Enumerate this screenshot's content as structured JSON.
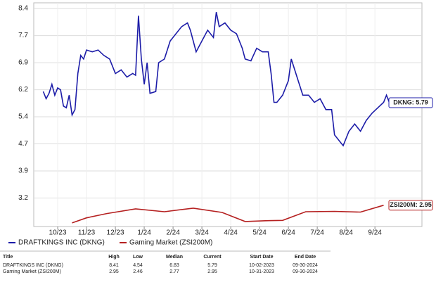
{
  "chart_data": {
    "type": "line",
    "xlim": [
      -0.83,
      12.63
    ],
    "xticks": [
      {
        "value": 0,
        "label": "10/23"
      },
      {
        "value": 1,
        "label": "11/23"
      },
      {
        "value": 2,
        "label": "12/23"
      },
      {
        "value": 3,
        "label": "1/24"
      },
      {
        "value": 4,
        "label": "2/24"
      },
      {
        "value": 5,
        "label": "3/24"
      },
      {
        "value": 6,
        "label": "4/24"
      },
      {
        "value": 7,
        "label": "5/24"
      },
      {
        "value": 8,
        "label": "6/24"
      },
      {
        "value": 9,
        "label": "7/24"
      },
      {
        "value": 10,
        "label": "8/24"
      },
      {
        "value": 11,
        "label": "9/24"
      }
    ],
    "ylim": [
      2.4,
      8.48
    ],
    "yticks": [
      8.4,
      {
        "value": 7.65,
        "label": "7.7"
      },
      6.9,
      {
        "value": 6.15,
        "label": "6.2"
      },
      5.4,
      {
        "value": 4.65,
        "label": "4.7"
      },
      3.9,
      {
        "value": 3.15,
        "label": "3.2"
      }
    ],
    "grid": true,
    "series": [
      {
        "name": "DRAFTKINGS INC (DKNG)",
        "color": "#1c1ca8",
        "annotation": "DKNG: 5.79",
        "x": [
          -0.5,
          -0.4,
          -0.3,
          -0.2,
          -0.1,
          0,
          0.1,
          0.2,
          0.3,
          0.4,
          0.5,
          0.6,
          0.7,
          0.8,
          0.9,
          1.0,
          1.2,
          1.4,
          1.6,
          1.8,
          2.0,
          2.2,
          2.4,
          2.6,
          2.7,
          2.8,
          2.9,
          3.0,
          3.1,
          3.2,
          3.4,
          3.5,
          3.7,
          3.9,
          4.1,
          4.3,
          4.5,
          4.6,
          4.8,
          5.0,
          5.2,
          5.4,
          5.5,
          5.6,
          5.8,
          6.0,
          6.2,
          6.4,
          6.5,
          6.7,
          6.9,
          7.1,
          7.3,
          7.4,
          7.5,
          7.6,
          7.8,
          8.0,
          8.1,
          8.3,
          8.5,
          8.7,
          8.9,
          9.1,
          9.3,
          9.5,
          9.6,
          9.8,
          9.9,
          10.1,
          10.3,
          10.5,
          10.7,
          10.9,
          11.1,
          11.3,
          11.4,
          11.5
        ],
        "values": [
          6.1,
          5.9,
          6.05,
          6.3,
          6.0,
          6.2,
          6.15,
          5.7,
          5.65,
          6.0,
          5.45,
          5.6,
          6.6,
          7.1,
          7.0,
          7.25,
          7.2,
          7.25,
          7.1,
          7.0,
          6.6,
          6.7,
          6.5,
          6.6,
          6.55,
          8.2,
          7.0,
          6.3,
          6.9,
          6.05,
          6.1,
          6.9,
          7.0,
          7.5,
          7.7,
          7.9,
          8.0,
          7.8,
          7.2,
          7.5,
          7.8,
          7.6,
          8.3,
          7.9,
          8.0,
          7.8,
          7.7,
          7.3,
          7.0,
          6.95,
          7.3,
          7.2,
          7.2,
          6.6,
          5.8,
          5.8,
          6.0,
          6.4,
          7.0,
          6.5,
          6.0,
          6.0,
          5.8,
          5.9,
          5.6,
          5.6,
          4.9,
          4.7,
          4.6,
          5.0,
          5.2,
          5.0,
          5.3,
          5.5,
          5.65,
          5.8,
          6.0,
          5.79
        ]
      },
      {
        "name": "Gaming Market (ZSI200M)",
        "color": "#b52020",
        "annotation": "ZSI200M: 2.95",
        "x": [
          0.5,
          1.0,
          1.7,
          2.7,
          3.7,
          4.7,
          5.7,
          6.5,
          7.2,
          7.8,
          8.6,
          9.6,
          10.5,
          11.3
        ],
        "values": [
          2.46,
          2.6,
          2.72,
          2.85,
          2.77,
          2.87,
          2.75,
          2.5,
          2.52,
          2.53,
          2.77,
          2.78,
          2.76,
          2.95
        ]
      }
    ]
  },
  "table": {
    "header": [
      "Title",
      "High",
      "Low",
      "Median",
      "Current",
      "Start Date",
      "End Date"
    ],
    "rows": [
      [
        "DRAFTKINGS INC (DKNG)",
        "8.41",
        "4.54",
        "6.83",
        "5.79",
        "10-02-2023",
        "09-30-2024"
      ],
      [
        "Gaming Market (ZSI200M)",
        "2.95",
        "2.46",
        "2.77",
        "2.95",
        "10-31-2023",
        "09-30-2024"
      ]
    ]
  }
}
